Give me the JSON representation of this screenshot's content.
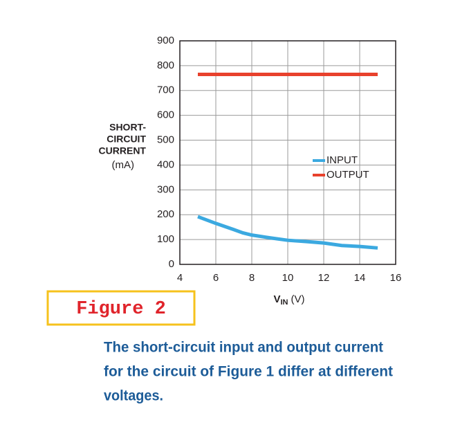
{
  "chart_data": {
    "type": "line",
    "ylabel": [
      "SHORT-",
      "CIRCUIT",
      "CURRENT",
      "(mA)"
    ],
    "xlabel": {
      "main": "V",
      "sub": "IN",
      "unit": "(V)"
    },
    "xlim": [
      4,
      16
    ],
    "xticks": [
      4,
      6,
      8,
      10,
      12,
      14,
      16
    ],
    "ylim": [
      0,
      900
    ],
    "yticks": [
      0,
      100,
      200,
      300,
      400,
      500,
      600,
      700,
      800,
      900
    ],
    "grid": true,
    "legend": "center right",
    "series": [
      {
        "name": "INPUT",
        "color": "#3ba9e0",
        "x": [
          5,
          6,
          7,
          7.5,
          8,
          9,
          10,
          11,
          12,
          13,
          14,
          15
        ],
        "values": [
          192,
          165,
          140,
          127,
          118,
          107,
          97,
          92,
          86,
          76,
          72,
          66
        ]
      },
      {
        "name": "OUTPUT",
        "color": "#e8412c",
        "x": [
          5,
          15
        ],
        "values": [
          765,
          765
        ]
      }
    ]
  },
  "figure_label": "Figure 2",
  "caption": [
    "The short-circuit input and output current",
    "for the circuit of Figure 1 differ at different",
    "voltages."
  ]
}
